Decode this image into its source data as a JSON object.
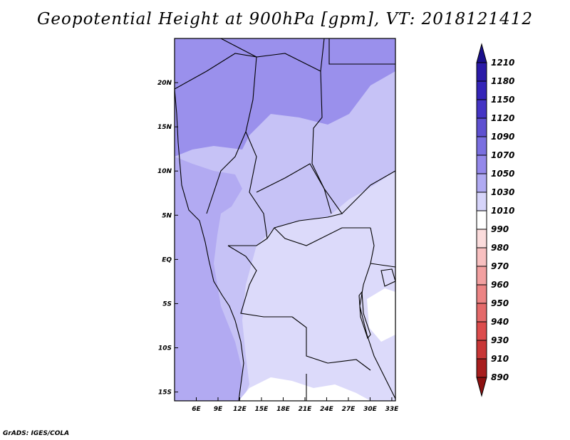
{
  "title": "Geopotential Height at 900hPa [gpm], VT: 2018121412",
  "credit": "GrADS: IGES/COLA",
  "map": {
    "lon_range": [
      3,
      33.5
    ],
    "lat_range": [
      -16,
      25
    ]
  },
  "axes": {
    "x_ticks": [
      {
        "value": 6,
        "label": "6E"
      },
      {
        "value": 9,
        "label": "9E"
      },
      {
        "value": 12,
        "label": "12E"
      },
      {
        "value": 15,
        "label": "15E"
      },
      {
        "value": 18,
        "label": "18E"
      },
      {
        "value": 21,
        "label": "21E"
      },
      {
        "value": 24,
        "label": "24E"
      },
      {
        "value": 27,
        "label": "27E"
      },
      {
        "value": 30,
        "label": "30E"
      },
      {
        "value": 33,
        "label": "33E"
      }
    ],
    "y_ticks": [
      {
        "value": 20,
        "label": "20N"
      },
      {
        "value": 15,
        "label": "15N"
      },
      {
        "value": 10,
        "label": "10N"
      },
      {
        "value": 5,
        "label": "5N"
      },
      {
        "value": 0,
        "label": "EQ"
      },
      {
        "value": -5,
        "label": "5S"
      },
      {
        "value": -10,
        "label": "10S"
      },
      {
        "value": -15,
        "label": "15S"
      }
    ]
  },
  "colorbar": {
    "levels": [
      1210,
      1180,
      1150,
      1120,
      1090,
      1070,
      1050,
      1030,
      1010,
      990,
      980,
      970,
      960,
      950,
      940,
      930,
      910,
      890
    ],
    "colors": [
      "#1a0f8c",
      "#2a1aa8",
      "#3424b8",
      "#4434c4",
      "#5e50d0",
      "#7a6fe0",
      "#9488ea",
      "#b0aaf2",
      "#d6d4fa",
      "#ffffff",
      "#fbdcdc",
      "#f8c0c0",
      "#f2a0a0",
      "#ec8484",
      "#e46a6a",
      "#dc4c4c",
      "#c83636",
      "#a81e1e",
      "#8c1010"
    ]
  },
  "field_colors": {
    "band_1070": "#9a90ec",
    "band_1050": "#b2aaf2",
    "band_1030": "#c6c2f6",
    "band_1010": "#dcdafa",
    "band_990": "#ffffff"
  }
}
